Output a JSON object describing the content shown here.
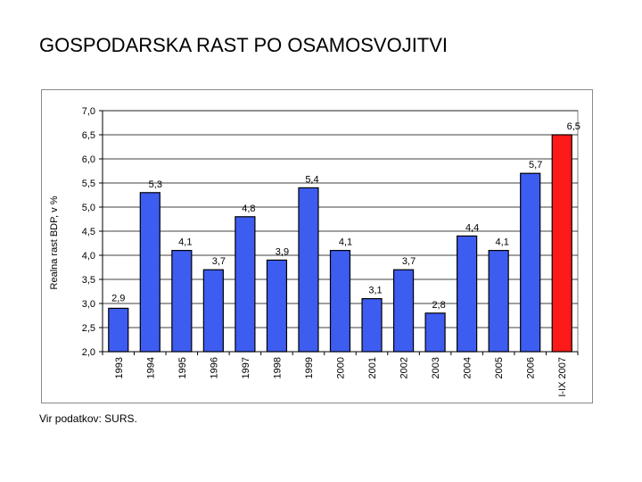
{
  "page": {
    "title": "GOSPODARSKA RAST PO OSAMOSVOJITVI",
    "source": "Vir podatkov: SURS."
  },
  "chart_data": {
    "type": "bar",
    "title": "GOSPODARSKA RAST PO OSAMOSVOJITVI",
    "xlabel": "",
    "ylabel": "Realna rast BDP, v %",
    "ylim": [
      2.0,
      7.0
    ],
    "yticks": [
      2.0,
      2.5,
      3.0,
      3.5,
      4.0,
      4.5,
      5.0,
      5.5,
      6.0,
      6.5,
      7.0
    ],
    "ytick_labels": [
      "2,0",
      "2,5",
      "3,0",
      "3,5",
      "4,0",
      "4,5",
      "5,0",
      "5,5",
      "6,0",
      "6,5",
      "7,0"
    ],
    "grid": true,
    "categories": [
      "1993",
      "1994",
      "1995",
      "1996",
      "1997",
      "1998",
      "1999",
      "2000",
      "2001",
      "2002",
      "2003",
      "2004",
      "2005",
      "2006",
      "I-IX 2007"
    ],
    "values": [
      2.9,
      5.3,
      4.1,
      3.7,
      4.8,
      3.9,
      5.4,
      4.1,
      3.1,
      3.7,
      2.8,
      4.4,
      4.1,
      5.7,
      6.5
    ],
    "value_labels": [
      "2,9",
      "5,3",
      "4,1",
      "3,7",
      "4,8",
      "3,9",
      "5,4",
      "4,1",
      "3,1",
      "3,7",
      "2,8",
      "4,4",
      "4,1",
      "5,7",
      "6,5"
    ],
    "colors": [
      "#3d5cf0",
      "#3d5cf0",
      "#3d5cf0",
      "#3d5cf0",
      "#3d5cf0",
      "#3d5cf0",
      "#3d5cf0",
      "#3d5cf0",
      "#3d5cf0",
      "#3d5cf0",
      "#3d5cf0",
      "#3d5cf0",
      "#3d5cf0",
      "#3d5cf0",
      "#ff1a1a"
    ]
  }
}
